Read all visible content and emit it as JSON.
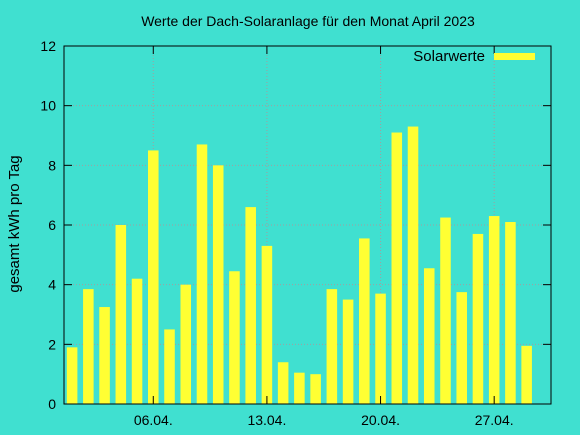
{
  "chart_data": {
    "type": "bar",
    "title": "Werte der Dach-Solaranlage für den Monat April 2023",
    "xlabel": "",
    "ylabel": "gesamt kWh pro Tag",
    "ylim": [
      0,
      12
    ],
    "yticks": [
      0,
      2,
      4,
      6,
      8,
      10,
      12
    ],
    "xticks": [
      {
        "day": 6,
        "label": "06.04."
      },
      {
        "day": 13,
        "label": "13.04."
      },
      {
        "day": 20,
        "label": "20.04."
      },
      {
        "day": 27,
        "label": "27.04."
      }
    ],
    "xlim": [
      1,
      30
    ],
    "grid": true,
    "legend_position": "top-right",
    "series": [
      {
        "name": "Solarwerte",
        "color": "#FFFF33",
        "x": [
          1,
          2,
          3,
          4,
          5,
          6,
          7,
          8,
          9,
          10,
          11,
          12,
          13,
          14,
          15,
          16,
          17,
          18,
          19,
          20,
          21,
          22,
          23,
          24,
          25,
          26,
          27,
          28,
          29,
          30
        ],
        "values": [
          1.9,
          3.85,
          3.25,
          6.0,
          4.2,
          8.5,
          2.5,
          4.0,
          8.7,
          8.0,
          4.45,
          6.6,
          5.3,
          1.4,
          1.05,
          1.0,
          3.85,
          3.5,
          5.55,
          3.7,
          9.1,
          9.3,
          4.55,
          6.25,
          3.75,
          5.7,
          6.3,
          6.1,
          1.95,
          0
        ]
      }
    ]
  },
  "colors": {
    "background": "#40E0D0",
    "grid": "#A0A0A0",
    "bar": "#FFFF33"
  }
}
